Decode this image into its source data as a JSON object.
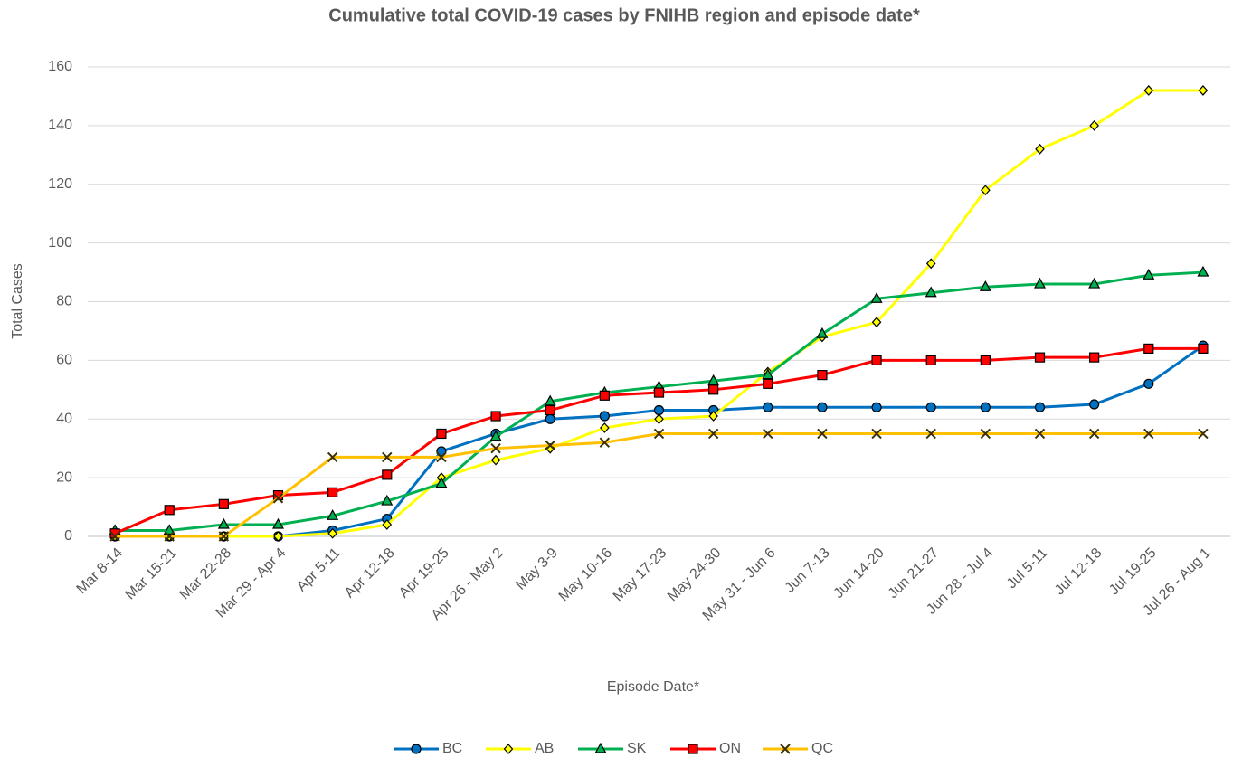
{
  "chart_data": {
    "type": "line",
    "title": "Cumulative total COVID-19 cases by FNIHB region and episode date*",
    "x_label": "Episode Date*",
    "y_label": "Total Cases",
    "categories": [
      "Mar 8-14",
      "Mar 15-21",
      "Mar 22-28",
      "Mar 29 - Apr 4",
      "Apr 5-11",
      "Apr 12-18",
      "Apr 19-25",
      "Apr 26 - May 2",
      "May 3-9",
      "May 10-16",
      "May 17-23",
      "May 24-30",
      "May 31 - Jun 6",
      "Jun 7-13",
      "Jun 14-20",
      "Jun 21-27",
      "Jun 28 - Jul 4",
      "Jul 5-11",
      "Jul 12-18",
      "Jul 19-25",
      "Jul 26 - Aug 1"
    ],
    "series": [
      {
        "name": "BC",
        "color": "#0070c0",
        "marker": "circle",
        "values": [
          0,
          0,
          0,
          0,
          2,
          6,
          29,
          35,
          40,
          41,
          43,
          43,
          44,
          44,
          44,
          44,
          44,
          44,
          45,
          52,
          65
        ]
      },
      {
        "name": "AB",
        "color": "#ffff00",
        "marker": "diamond",
        "values": [
          0,
          0,
          0,
          0,
          1,
          4,
          20,
          26,
          30,
          37,
          40,
          41,
          56,
          68,
          73,
          93,
          118,
          132,
          140,
          152,
          152
        ]
      },
      {
        "name": "SK",
        "color": "#00b050",
        "marker": "triangle",
        "values": [
          2,
          2,
          4,
          4,
          7,
          12,
          18,
          34,
          46,
          49,
          51,
          53,
          55,
          69,
          81,
          83,
          85,
          86,
          86,
          89,
          90
        ]
      },
      {
        "name": "ON",
        "color": "#ff0000",
        "marker": "square",
        "values": [
          1,
          9,
          11,
          14,
          15,
          21,
          35,
          41,
          43,
          48,
          49,
          50,
          52,
          55,
          60,
          60,
          60,
          61,
          61,
          64,
          64
        ]
      },
      {
        "name": "QC",
        "color": "#ffc000",
        "marker": "x",
        "values": [
          0,
          0,
          0,
          13,
          27,
          27,
          27,
          30,
          31,
          32,
          35,
          35,
          35,
          35,
          35,
          35,
          35,
          35,
          35,
          35,
          35
        ]
      }
    ],
    "ylim": [
      0,
      160
    ],
    "yticks": [
      0,
      20,
      40,
      60,
      80,
      100,
      120,
      140,
      160
    ],
    "grid": true,
    "legend": "bottom"
  }
}
